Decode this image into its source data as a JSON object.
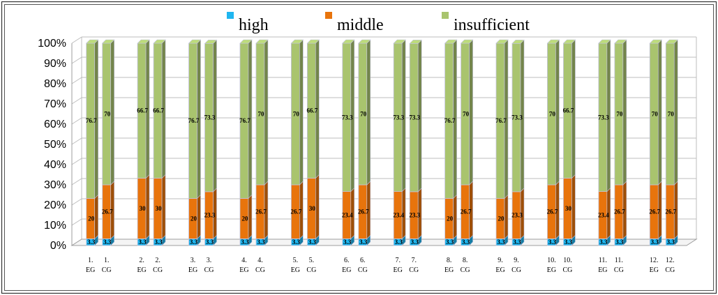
{
  "chart_data": {
    "type": "bar",
    "stacked": true,
    "percent": true,
    "three_d": true,
    "title": "",
    "xlabel": "",
    "ylabel": "",
    "ylim": [
      0,
      100
    ],
    "y_ticks": [
      "0%",
      "10%",
      "20%",
      "30%",
      "40%",
      "50%",
      "60%",
      "70%",
      "80%",
      "90%",
      "100%"
    ],
    "legend_position": "top",
    "grid": true,
    "categories": [
      [
        "1.",
        "EG"
      ],
      [
        "1.",
        "CG"
      ],
      [
        "2.",
        "EG"
      ],
      [
        "2.",
        "CG"
      ],
      [
        "3.",
        "EG"
      ],
      [
        "3.",
        "CG"
      ],
      [
        "4.",
        "EG"
      ],
      [
        "4.",
        "CG"
      ],
      [
        "5.",
        "EG"
      ],
      [
        "5.",
        "CG"
      ],
      [
        "6.",
        "EG"
      ],
      [
        "6.",
        "CG"
      ],
      [
        "7.",
        "EG"
      ],
      [
        "7.",
        "CG"
      ],
      [
        "8.",
        "EG"
      ],
      [
        "8.",
        "CG"
      ],
      [
        "9.",
        "EG"
      ],
      [
        "9.",
        "CG"
      ],
      [
        "10.",
        "EG"
      ],
      [
        "10.",
        "CG"
      ],
      [
        "11.",
        "EG"
      ],
      [
        "11.",
        "CG"
      ],
      [
        "12.",
        "EG"
      ],
      [
        "12.",
        "CG"
      ]
    ],
    "series": [
      {
        "name": "high",
        "color": "#1fb6f0",
        "values": [
          3.3,
          3.3,
          3.3,
          3.3,
          3.3,
          3.3,
          3.3,
          3.3,
          3.3,
          3.3,
          3.3,
          3.3,
          3.3,
          3.3,
          3.3,
          3.3,
          3.3,
          3.3,
          3.3,
          3.3,
          3.3,
          3.3,
          3.3,
          3.3
        ]
      },
      {
        "name": "middle",
        "color": "#e8740c",
        "values": [
          20,
          26.7,
          30,
          30,
          20,
          23.3,
          20,
          26.7,
          26.7,
          30,
          23.4,
          26.7,
          23.4,
          23.3,
          20,
          26.7,
          20,
          23.3,
          26.7,
          30,
          23.4,
          26.7,
          26.7,
          26.7
        ]
      },
      {
        "name": "insufficient",
        "color": "#a9c46e",
        "values": [
          76.7,
          70,
          66.7,
          66.7,
          76.7,
          73.3,
          76.7,
          70,
          70,
          66.7,
          73.3,
          70,
          73.3,
          73.3,
          76.7,
          70,
          76.7,
          73.3,
          70,
          66.7,
          73.3,
          70,
          70,
          70
        ]
      }
    ]
  }
}
